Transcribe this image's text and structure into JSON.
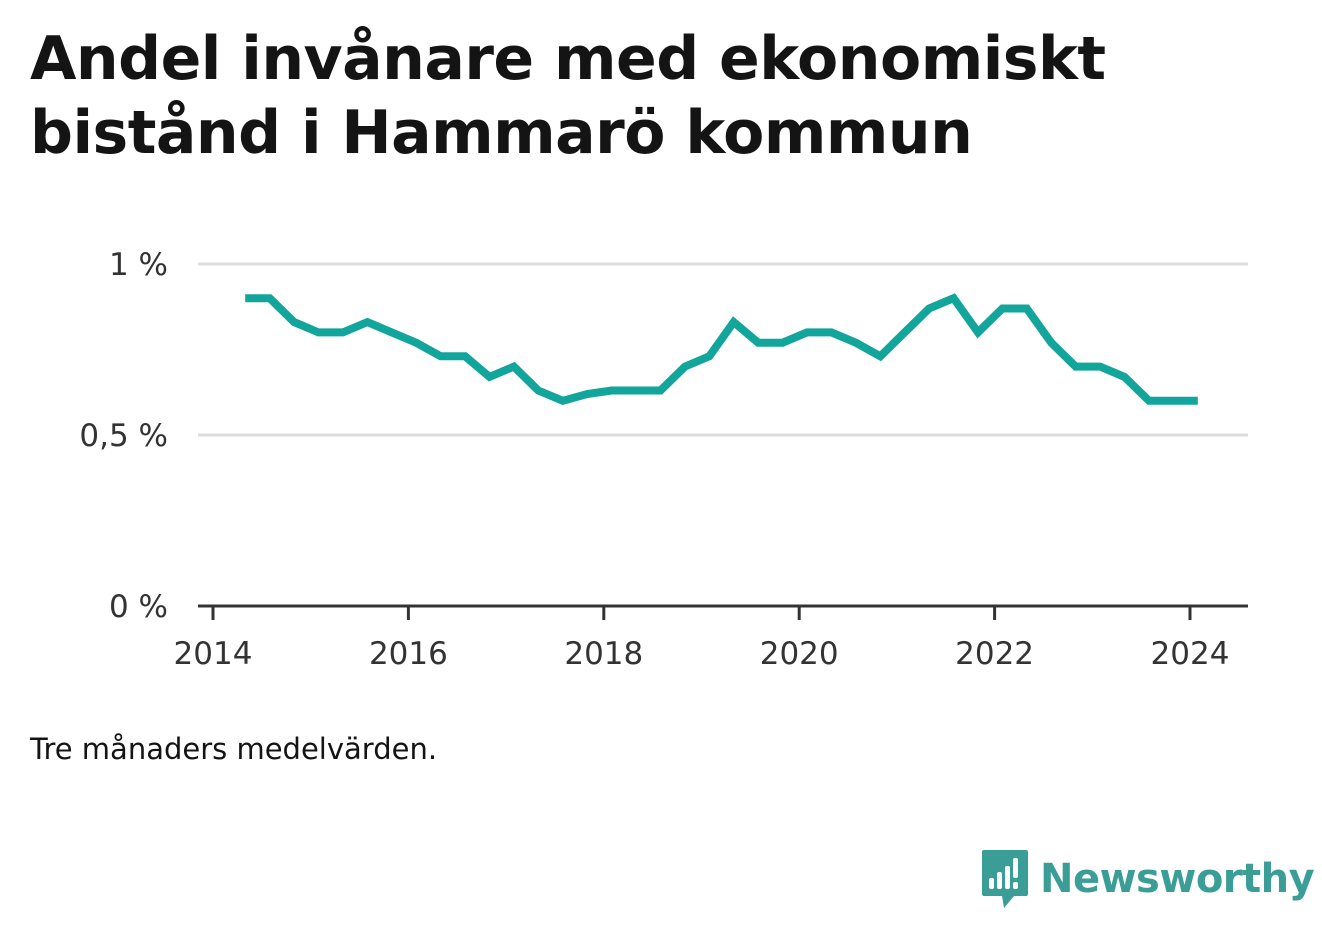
{
  "title": "Andel invånare med ekonomiskt bistånd i Hammarö kommun",
  "note": "Tre månaders medelvärden.",
  "brand": {
    "name": "Newsworthy",
    "icon": "newsworthy-logo-icon",
    "color": "#3a9e96"
  },
  "colors": {
    "line": "#12a59b",
    "grid": "#dddddd",
    "axis": "#333333"
  },
  "chart_data": {
    "type": "line",
    "title": "Andel invånare med ekonomiskt bistånd i Hammarö kommun",
    "xlabel": "",
    "ylabel": "",
    "grid": true,
    "xlim": [
      2014,
      2024.3
    ],
    "ylim": [
      0,
      1
    ],
    "x_ticks": [
      2014,
      2016,
      2018,
      2020,
      2022,
      2024
    ],
    "x_tick_labels": [
      "2014",
      "2016",
      "2018",
      "2020",
      "2022",
      "2024"
    ],
    "y_ticks": [
      0,
      0.5,
      1
    ],
    "y_tick_labels": [
      "0 %",
      "0,5 %",
      "1 %"
    ],
    "series": [
      {
        "values_unit": "percent",
        "x": [
          2014.33,
          2014.58,
          2014.83,
          2015.08,
          2015.33,
          2015.58,
          2015.83,
          2016.08,
          2016.33,
          2016.58,
          2016.83,
          2017.08,
          2017.33,
          2017.58,
          2017.83,
          2018.08,
          2018.33,
          2018.58,
          2018.83,
          2019.08,
          2019.33,
          2019.58,
          2019.83,
          2020.08,
          2020.33,
          2020.58,
          2020.83,
          2021.08,
          2021.33,
          2021.58,
          2021.83,
          2022.08,
          2022.33,
          2022.58,
          2022.83,
          2023.08,
          2023.33,
          2023.58,
          2023.83,
          2024.08
        ],
        "values": [
          0.9,
          0.9,
          0.83,
          0.8,
          0.8,
          0.83,
          0.8,
          0.77,
          0.73,
          0.73,
          0.67,
          0.7,
          0.63,
          0.6,
          0.62,
          0.63,
          0.63,
          0.63,
          0.7,
          0.73,
          0.83,
          0.77,
          0.77,
          0.8,
          0.8,
          0.77,
          0.73,
          0.8,
          0.87,
          0.9,
          0.8,
          0.87,
          0.87,
          0.77,
          0.7,
          0.7,
          0.67,
          0.6,
          0.6,
          0.6
        ]
      }
    ]
  }
}
